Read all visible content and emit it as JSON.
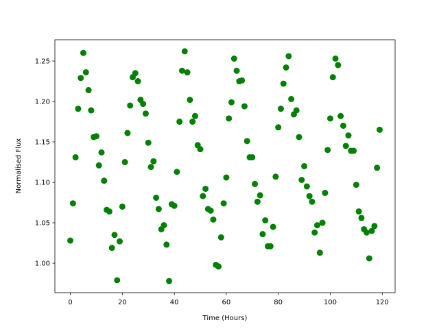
{
  "chart_data": {
    "type": "scatter",
    "xlabel": "Time (Hours)",
    "ylabel": "Normalised Flux",
    "color": "#008000",
    "x": [
      0,
      1,
      2,
      3,
      4,
      5,
      6,
      7,
      8,
      9,
      10,
      11,
      12,
      13,
      14,
      15,
      16,
      17,
      18,
      19,
      20,
      21,
      22,
      23,
      24,
      25,
      26,
      27,
      28,
      29,
      30,
      31,
      32,
      33,
      34,
      35,
      36,
      37,
      38,
      39,
      40,
      41,
      42,
      43,
      44,
      45,
      46,
      47,
      48,
      49,
      50,
      51,
      52,
      53,
      54,
      55,
      56,
      57,
      58,
      59,
      60,
      61,
      62,
      63,
      64,
      65,
      66,
      67,
      68,
      69,
      70,
      71,
      72,
      73,
      74,
      75,
      76,
      77,
      78,
      79,
      80,
      81,
      82,
      83,
      84,
      85,
      86,
      87,
      88,
      89,
      90,
      91,
      92,
      93,
      94,
      95,
      96,
      97,
      98,
      99,
      100,
      101,
      102,
      103,
      104,
      105,
      106,
      107,
      108,
      109,
      110,
      111,
      112,
      113,
      114,
      115,
      116,
      117,
      118,
      119
    ],
    "values": [
      1.028,
      1.074,
      1.131,
      1.191,
      1.229,
      1.26,
      1.236,
      1.214,
      1.189,
      1.156,
      1.157,
      1.121,
      1.137,
      1.102,
      1.066,
      1.064,
      1.019,
      1.035,
      0.979,
      1.027,
      1.07,
      1.125,
      1.161,
      1.195,
      1.23,
      1.235,
      1.225,
      1.202,
      1.197,
      1.185,
      1.149,
      1.119,
      1.126,
      1.081,
      1.067,
      1.042,
      1.047,
      1.023,
      0.978,
      1.073,
      1.071,
      1.113,
      1.175,
      1.238,
      1.262,
      1.236,
      1.202,
      1.175,
      1.182,
      1.146,
      1.141,
      1.083,
      1.092,
      1.067,
      1.065,
      1.054,
      0.998,
      0.996,
      1.032,
      1.074,
      1.106,
      1.179,
      1.199,
      1.253,
      1.238,
      1.225,
      1.226,
      1.194,
      1.151,
      1.131,
      1.131,
      1.098,
      1.076,
      1.084,
      1.036,
      1.053,
      1.021,
      1.021,
      1.045,
      1.107,
      1.168,
      1.191,
      1.222,
      1.242,
      1.256,
      1.203,
      1.184,
      1.189,
      1.156,
      1.103,
      1.12,
      1.095,
      1.083,
      1.076,
      1.038,
      1.047,
      1.013,
      1.05,
      1.087,
      1.14,
      1.179,
      1.23,
      1.253,
      1.245,
      1.182,
      1.17,
      1.145,
      1.158,
      1.139,
      1.139,
      1.097,
      1.064,
      1.056,
      1.042,
      1.038,
      1.006,
      1.04,
      1.046,
      1.118,
      1.165
    ],
    "xlim": [
      -5.95,
      124.95
    ],
    "xticks": [
      0,
      20,
      40,
      60,
      80,
      100,
      120
    ],
    "ylim": [
      0.9636,
      1.2763
    ],
    "yticks": [
      {
        "value": 1.0,
        "label": "1.00"
      },
      1.05,
      {
        "value": 1.1,
        "label": "1.10"
      },
      1.15,
      {
        "value": 1.2,
        "label": "1.20"
      },
      1.25
    ],
    "grid": false
  }
}
